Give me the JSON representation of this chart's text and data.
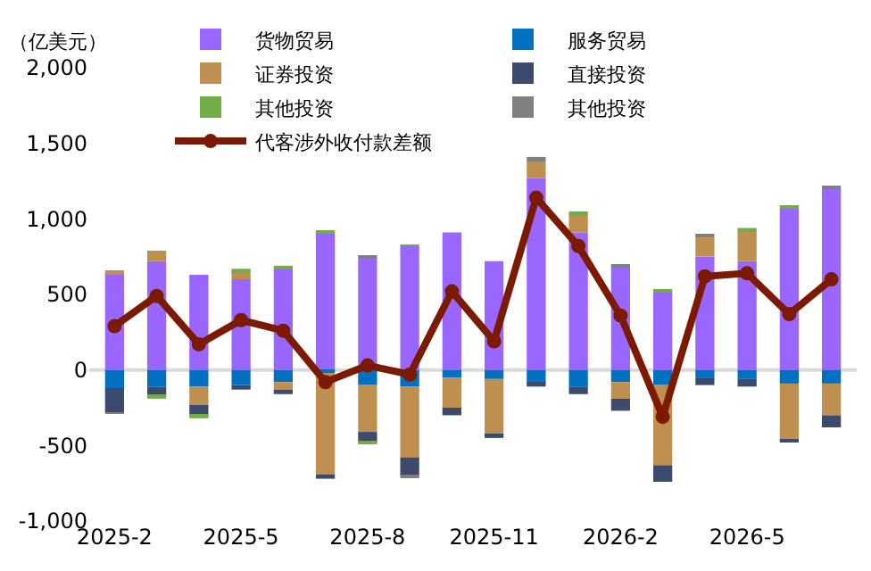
{
  "chart_data": {
    "type": "bar",
    "stacked": true,
    "ylabel": "（亿美元）",
    "categories": [
      "2025-2",
      null,
      null,
      "2025-5",
      null,
      null,
      "2025-8",
      null,
      null,
      "2025-11",
      null,
      null,
      "2026-2",
      null,
      null,
      "2026-5",
      null,
      null
    ],
    "series": [
      {
        "name": "货物贸易",
        "color": "#9966ff",
        "values": [
          640,
          720,
          630,
          600,
          670,
          910,
          740,
          820,
          910,
          720,
          1270,
          910,
          680,
          520,
          750,
          720,
          1070,
          1200
        ]
      },
      {
        "name": "服务贸易",
        "color": "#0070c0",
        "values": [
          -120,
          -110,
          -110,
          -100,
          -80,
          -20,
          -100,
          -110,
          -50,
          -60,
          -90,
          -110,
          -80,
          -100,
          -50,
          -60,
          -90,
          -90
        ]
      },
      {
        "name": "证券投资",
        "color": "#bf8f4f",
        "values": [
          20,
          70,
          -120,
          50,
          -50,
          -670,
          -310,
          -470,
          -200,
          -360,
          110,
          120,
          -110,
          -530,
          130,
          200,
          -370,
          -210
        ]
      },
      {
        "name": "直接投资",
        "color": "#3c4a6e",
        "values": [
          -160,
          -60,
          -70,
          -30,
          -30,
          -30,
          -70,
          -120,
          -50,
          -30,
          -20,
          -50,
          -80,
          -110,
          -50,
          -50,
          -20,
          -80
        ]
      },
      {
        "name": "其他投资",
        "color": "#70ad47",
        "values": [
          0,
          -20,
          -20,
          20,
          20,
          10,
          -10,
          10,
          0,
          0,
          0,
          20,
          0,
          10,
          0,
          20,
          10,
          0
        ]
      },
      {
        "name": "其他投资",
        "color": "#808080",
        "values": [
          -10,
          0,
          0,
          0,
          0,
          0,
          10,
          -10,
          0,
          0,
          30,
          0,
          10,
          0,
          20,
          0,
          0,
          10
        ]
      },
      {
        "name": "代客涉外收付款差额",
        "type": "line",
        "color": "#7b1a00",
        "marker": "circle",
        "line_style": "solid",
        "values": [
          290,
          490,
          170,
          330,
          260,
          -80,
          30,
          -30,
          520,
          190,
          1140,
          820,
          360,
          -310,
          620,
          640,
          370,
          600
        ]
      }
    ],
    "ylim": [
      -1000,
      2000
    ],
    "yticks": [
      {
        "value": -1000,
        "label": "-1,000"
      },
      {
        "value": -500,
        "label": "-500"
      },
      0,
      500,
      {
        "value": 1000,
        "label": "1,000"
      },
      {
        "value": 1500,
        "label": "1,500"
      },
      {
        "value": 2000,
        "label": "2,000"
      }
    ],
    "ref_lines": [
      {
        "axis": "y",
        "value": 0,
        "color": "#d9d9d9"
      }
    ],
    "grid": false,
    "legend": "top"
  }
}
